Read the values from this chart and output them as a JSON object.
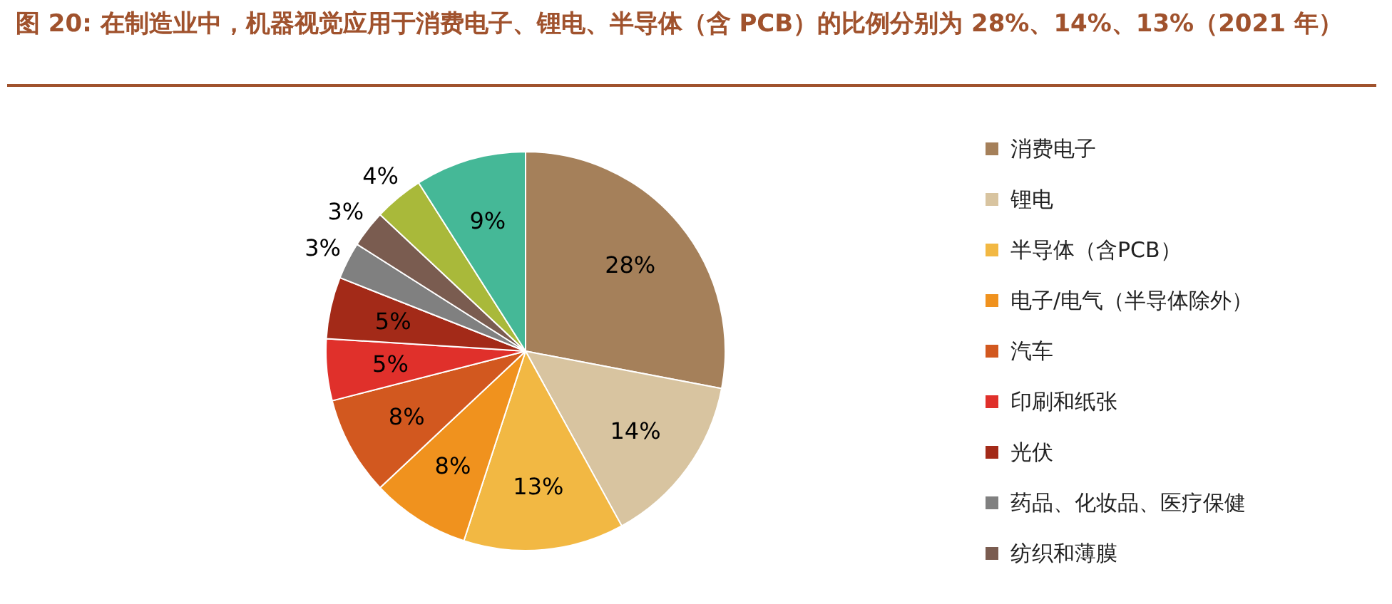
{
  "chart_data": {
    "type": "pie",
    "title": "图 20: 在制造业中，机器视觉应用于消费电子、锂电、半导体（含 PCB）的比例分别为 28%、14%、13%（2021 年）",
    "categories": [
      "消费电子",
      "锂电",
      "半导体（含PCB）",
      "电子/电气（半导体除外）",
      "汽车",
      "印刷和纸张",
      "光伏",
      "药品、化妆品、医疗保健",
      "纺织和薄膜",
      null,
      null
    ],
    "values": [
      28,
      14,
      13,
      8,
      8,
      5,
      5,
      3,
      3,
      4,
      9
    ],
    "colors": [
      "#a5805a",
      "#d8c4a0",
      "#f2b843",
      "#f0921e",
      "#d2581f",
      "#e0302b",
      "#a32a18",
      "#808080",
      "#7a5c50",
      "#a9b93a",
      "#45b897"
    ],
    "value_labels": [
      "28%",
      "14%",
      "13%",
      "8%",
      "8%",
      "5%",
      "5%",
      "3%",
      "3%",
      "4%",
      "9%"
    ],
    "legend": "right"
  }
}
